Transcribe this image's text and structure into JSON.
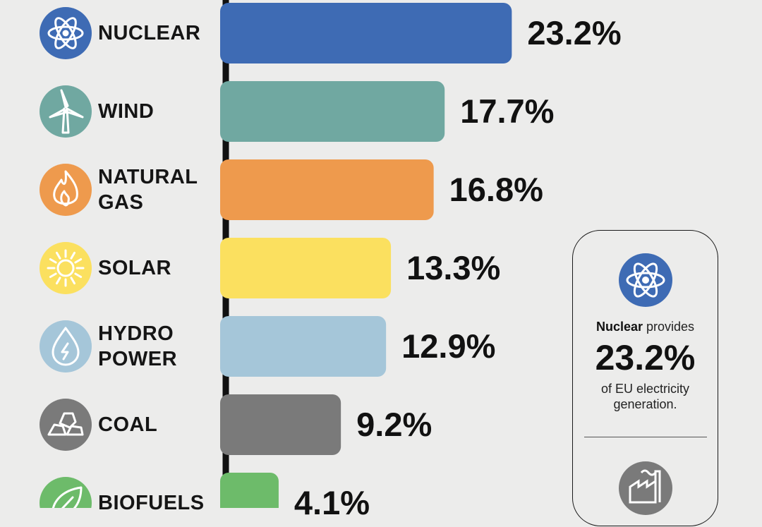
{
  "chart_data": {
    "type": "bar",
    "orientation": "horizontal",
    "categories": [
      {
        "label": "NUCLEAR",
        "lines": [
          "NUCLEAR"
        ],
        "icon": "atom-icon",
        "color": "#3e6bb4"
      },
      {
        "label": "WIND",
        "lines": [
          "WIND"
        ],
        "icon": "wind-turbine-icon",
        "color": "#70a8a1"
      },
      {
        "label": "NATURAL GAS",
        "lines": [
          "NATURAL",
          "GAS"
        ],
        "icon": "flame-icon",
        "color": "#ee9a4d"
      },
      {
        "label": "SOLAR",
        "lines": [
          "SOLAR"
        ],
        "icon": "sun-icon",
        "color": "#fbe05f"
      },
      {
        "label": "HYDRO POWER",
        "lines": [
          "HYDRO",
          "POWER"
        ],
        "icon": "water-drop-icon",
        "color": "#a5c6d9"
      },
      {
        "label": "COAL",
        "lines": [
          "COAL"
        ],
        "icon": "coal-rocks-icon",
        "color": "#7a7a7a"
      },
      {
        "label": "BIOFUELS",
        "lines": [
          "BIOFUELS"
        ],
        "icon": "leaf-icon",
        "color": "#6dbb6a"
      }
    ],
    "values": [
      23.2,
      17.7,
      16.8,
      13.3,
      12.9,
      9.2,
      4.1
    ],
    "value_labels": [
      "23.2%",
      "17.7%",
      "16.8%",
      "13.3%",
      "12.9%",
      "9.2%",
      "4.1%"
    ],
    "unit": "%"
  },
  "callout": {
    "icon": "atom-icon",
    "icon_color": "#3e6bb4",
    "subject": "Nuclear",
    "text_after_subject": " provides",
    "big_value": "23.2%",
    "line2": "of EU electricity",
    "line3": "generation.",
    "bottom_icon": "factory-icon",
    "bottom_icon_color": "#7a7a7a"
  }
}
